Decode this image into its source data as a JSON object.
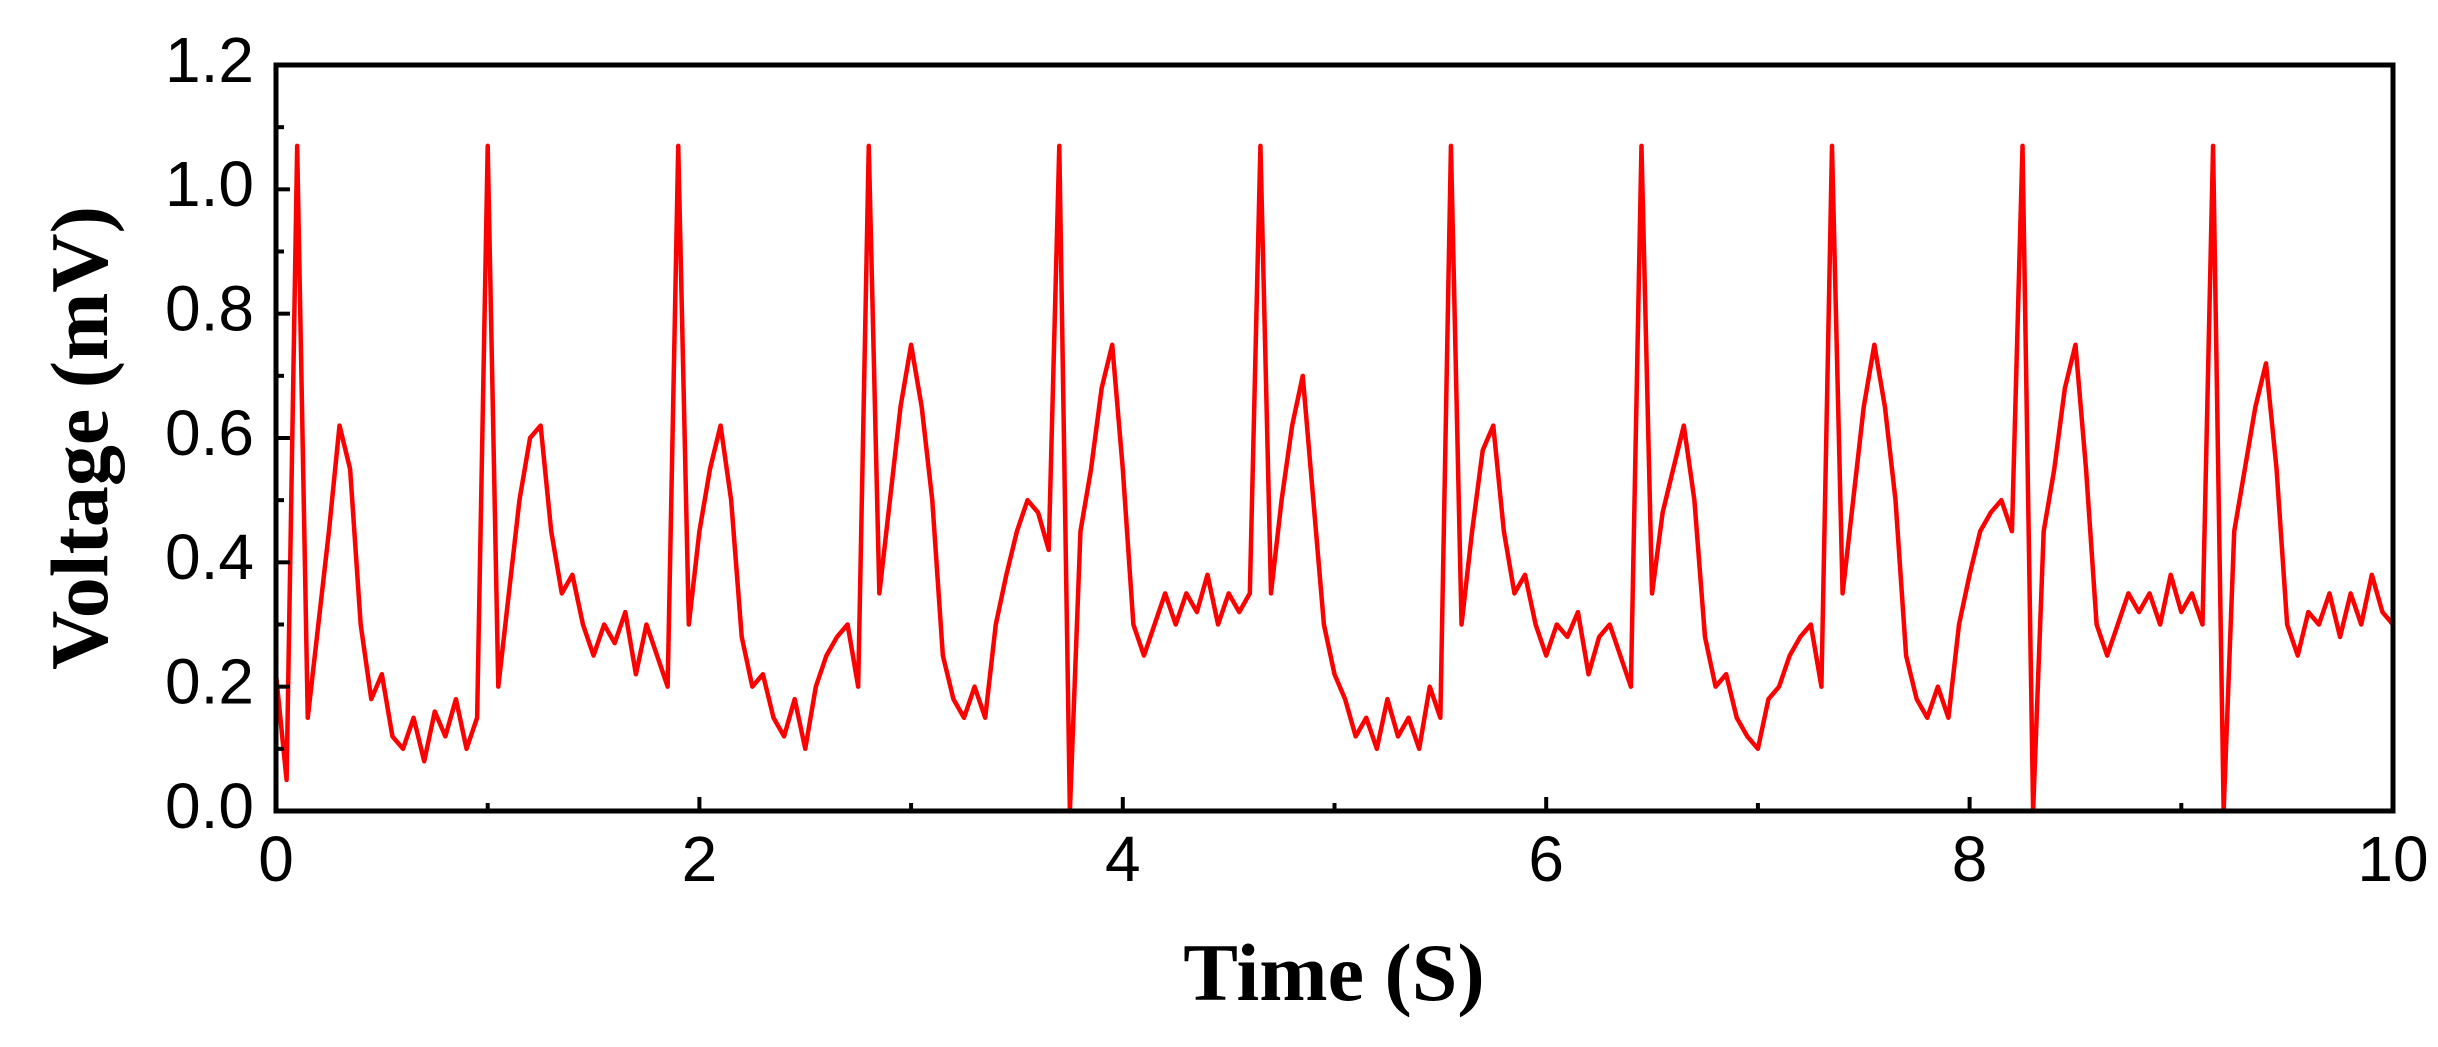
{
  "chart_data": {
    "type": "line",
    "xlabel": "Time (S)",
    "ylabel": "Voltage (mV)",
    "color": "#ff0000",
    "xlim": [
      0,
      10
    ],
    "ylim": [
      0,
      1.2
    ],
    "xticks": [
      0,
      2,
      4,
      6,
      8,
      10
    ],
    "yticks": [
      {
        "value": 0,
        "label": "0.0"
      },
      0.2,
      0.4,
      0.6,
      0.8,
      {
        "value": 1,
        "label": "1.0"
      },
      1.2
    ],
    "x": [
      0,
      0.05,
      0.1,
      0.15,
      0.2,
      0.25,
      0.3,
      0.35,
      0.4,
      0.45,
      0.5,
      0.55,
      0.6,
      0.65,
      0.7,
      0.75,
      0.8,
      0.85,
      0.9,
      0.95,
      1,
      1.05,
      1.1,
      1.15,
      1.2,
      1.25,
      1.3,
      1.35,
      1.4,
      1.45,
      1.5,
      1.55,
      1.6,
      1.65,
      1.7,
      1.75,
      1.8,
      1.85,
      1.9,
      1.95,
      2,
      2.05,
      2.1,
      2.15,
      2.2,
      2.25,
      2.3,
      2.35,
      2.4,
      2.45,
      2.5,
      2.55,
      2.6,
      2.65,
      2.7,
      2.75,
      2.8,
      2.85,
      2.9,
      2.95,
      3,
      3.05,
      3.1,
      3.15,
      3.2,
      3.25,
      3.3,
      3.35,
      3.4,
      3.45,
      3.5,
      3.55,
      3.6,
      3.65,
      3.7,
      3.75,
      3.8,
      3.85,
      3.9,
      3.95,
      4,
      4.05,
      4.1,
      4.15,
      4.2,
      4.25,
      4.3,
      4.35,
      4.4,
      4.45,
      4.5,
      4.55,
      4.6,
      4.65,
      4.7,
      4.75,
      4.8,
      4.85,
      4.9,
      4.95,
      5,
      5.05,
      5.1,
      5.15,
      5.2,
      5.25,
      5.3,
      5.35,
      5.4,
      5.45,
      5.5,
      5.55,
      5.6,
      5.65,
      5.7,
      5.75,
      5.8,
      5.85,
      5.9,
      5.95,
      6,
      6.05,
      6.1,
      6.15,
      6.2,
      6.25,
      6.3,
      6.35,
      6.4,
      6.45,
      6.5,
      6.55,
      6.6,
      6.65,
      6.7,
      6.75,
      6.8,
      6.85,
      6.9,
      6.95,
      7,
      7.05,
      7.1,
      7.15,
      7.2,
      7.25,
      7.3,
      7.35,
      7.4,
      7.45,
      7.5,
      7.55,
      7.6,
      7.65,
      7.7,
      7.75,
      7.8,
      7.85,
      7.9,
      7.95,
      8,
      8.05,
      8.1,
      8.15,
      8.2,
      8.25,
      8.3,
      8.35,
      8.4,
      8.45,
      8.5,
      8.55,
      8.6,
      8.65,
      8.7,
      8.75,
      8.8,
      8.85,
      8.9,
      8.95,
      9,
      9.05,
      9.1,
      9.15,
      9.2,
      9.25,
      9.3,
      9.35,
      9.4,
      9.45,
      9.5,
      9.55,
      9.6,
      9.65,
      9.7,
      9.75,
      9.8,
      9.85,
      9.9,
      9.95,
      10
    ],
    "values": [
      0.22,
      0.05,
      1.07,
      0.15,
      0.3,
      0.45,
      0.62,
      0.55,
      0.3,
      0.18,
      0.22,
      0.12,
      0.1,
      0.15,
      0.08,
      0.16,
      0.12,
      0.18,
      0.1,
      0.15,
      1.07,
      0.2,
      0.35,
      0.5,
      0.6,
      0.62,
      0.45,
      0.35,
      0.38,
      0.3,
      0.25,
      0.3,
      0.27,
      0.32,
      0.22,
      0.3,
      0.25,
      0.2,
      1.07,
      0.3,
      0.45,
      0.55,
      0.62,
      0.5,
      0.28,
      0.2,
      0.22,
      0.15,
      0.12,
      0.18,
      0.1,
      0.2,
      0.25,
      0.28,
      0.3,
      0.2,
      1.07,
      0.35,
      0.5,
      0.65,
      0.75,
      0.65,
      0.5,
      0.25,
      0.18,
      0.15,
      0.2,
      0.15,
      0.3,
      0.38,
      0.45,
      0.5,
      0.48,
      0.42,
      1.07,
      0,
      0.45,
      0.55,
      0.68,
      0.75,
      0.55,
      0.3,
      0.25,
      0.3,
      0.35,
      0.3,
      0.35,
      0.32,
      0.38,
      0.3,
      0.35,
      0.32,
      0.35,
      1.07,
      0.35,
      0.5,
      0.62,
      0.7,
      0.5,
      0.3,
      0.22,
      0.18,
      0.12,
      0.15,
      0.1,
      0.18,
      0.12,
      0.15,
      0.1,
      0.2,
      0.15,
      1.07,
      0.3,
      0.45,
      0.58,
      0.62,
      0.45,
      0.35,
      0.38,
      0.3,
      0.25,
      0.3,
      0.28,
      0.32,
      0.22,
      0.28,
      0.3,
      0.25,
      0.2,
      1.07,
      0.35,
      0.48,
      0.55,
      0.62,
      0.5,
      0.28,
      0.2,
      0.22,
      0.15,
      0.12,
      0.1,
      0.18,
      0.2,
      0.25,
      0.28,
      0.3,
      0.2,
      1.07,
      0.35,
      0.5,
      0.65,
      0.75,
      0.65,
      0.5,
      0.25,
      0.18,
      0.15,
      0.2,
      0.15,
      0.3,
      0.38,
      0.45,
      0.48,
      0.5,
      0.45,
      1.07,
      0,
      0.45,
      0.55,
      0.68,
      0.75,
      0.55,
      0.3,
      0.25,
      0.3,
      0.35,
      0.32,
      0.35,
      0.3,
      0.38,
      0.32,
      0.35,
      0.3,
      1.07,
      0,
      0.45,
      0.55,
      0.65,
      0.72,
      0.55,
      0.3,
      0.25,
      0.32,
      0.3,
      0.35,
      0.28,
      0.35,
      0.3,
      0.38,
      0.32,
      0.3
    ]
  }
}
